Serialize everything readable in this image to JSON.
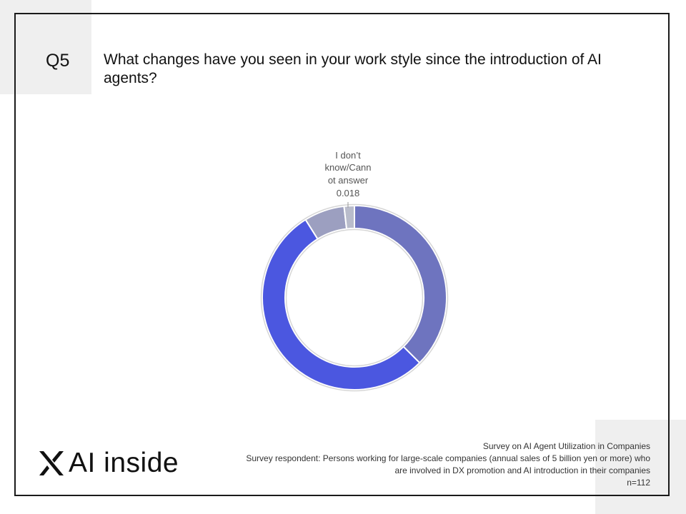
{
  "header": {
    "question_number": "Q5",
    "question_text": "What changes have you seen in your work style since the introduction of AI agents?"
  },
  "chart_data": {
    "type": "pie",
    "slices": [
      {
        "label": "",
        "value": 0.375,
        "color": "#6e74bf"
      },
      {
        "label": "",
        "value": 0.536,
        "color": "#4b57e0"
      },
      {
        "label": "",
        "value": 0.071,
        "color": "#9c9fc0"
      },
      {
        "label": "I don't know/Cannot answer",
        "value": 0.018,
        "color": "#b9bccb"
      }
    ],
    "data_labels": [
      {
        "lines": [
          "I don’t",
          "know/Cann",
          "ot answer"
        ],
        "value": "0.018"
      }
    ]
  },
  "logo": {
    "text": "AI inside"
  },
  "footer": {
    "line1": "Survey on AI Agent Utilization in Companies",
    "line2": "Survey respondent: Persons working for large-scale companies (annual sales of 5 billion yen or more) who",
    "line3": "are involved in DX promotion and AI introduction in their companies",
    "n": "n=112"
  }
}
